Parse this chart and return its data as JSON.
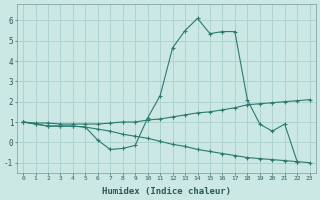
{
  "xlabel": "Humidex (Indice chaleur)",
  "x_values": [
    0,
    1,
    2,
    3,
    4,
    5,
    6,
    7,
    8,
    9,
    10,
    11,
    12,
    13,
    14,
    15,
    16,
    17,
    18,
    19,
    20,
    21,
    22,
    23
  ],
  "line1": [
    1.0,
    0.9,
    0.8,
    0.8,
    0.8,
    0.75,
    0.1,
    -0.35,
    -0.3,
    -0.15,
    1.2,
    2.3,
    4.65,
    5.5,
    6.1,
    5.35,
    5.45,
    5.45,
    2.1,
    0.9,
    0.55,
    0.9,
    -0.95,
    null
  ],
  "line2": [
    1.0,
    0.95,
    0.95,
    0.9,
    0.9,
    0.9,
    0.9,
    0.95,
    1.0,
    1.0,
    1.1,
    1.15,
    1.25,
    1.35,
    1.45,
    1.5,
    1.6,
    1.7,
    1.85,
    1.9,
    1.95,
    2.0,
    2.05,
    2.1
  ],
  "line3": [
    1.0,
    0.9,
    0.8,
    0.8,
    0.8,
    0.75,
    0.65,
    0.55,
    0.4,
    0.3,
    0.2,
    0.05,
    -0.1,
    -0.2,
    -0.35,
    -0.45,
    -0.55,
    -0.65,
    -0.75,
    -0.8,
    -0.85,
    -0.9,
    -0.95,
    -1.0
  ],
  "bg_color": "#cce8e5",
  "grid_color": "#aacfcc",
  "line_color": "#2a7a70",
  "ylim": [
    -1.5,
    6.8
  ],
  "xlim": [
    -0.5,
    23.5
  ],
  "yticks": [
    -1,
    0,
    1,
    2,
    3,
    4,
    5,
    6
  ],
  "xticks": [
    0,
    1,
    2,
    3,
    4,
    5,
    6,
    7,
    8,
    9,
    10,
    11,
    12,
    13,
    14,
    15,
    16,
    17,
    18,
    19,
    20,
    21,
    22,
    23
  ],
  "xlabel_color": "#2a5a54",
  "tick_color": "#2a5a54",
  "spine_color": "#7a9a98"
}
